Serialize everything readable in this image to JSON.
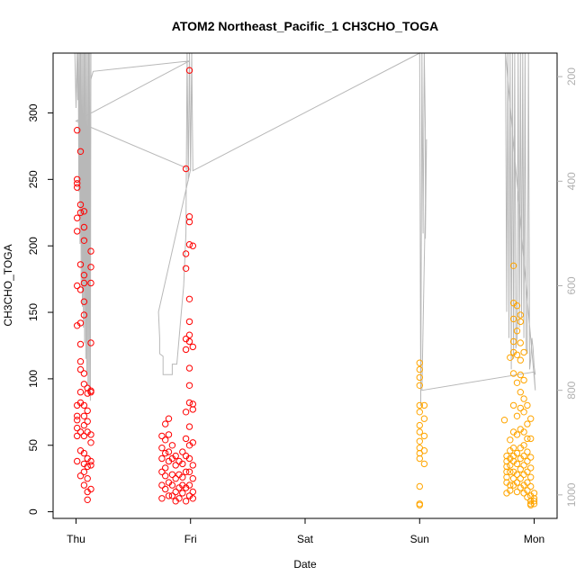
{
  "chart_data": {
    "type": "scatter",
    "title": "ATOM2 Northeast_Pacific_1 CH3CHO_TOGA",
    "xlabel": "Date",
    "ylabel": "CH3CHO_TOGA",
    "x_ticks": [
      "Thu",
      "Fri",
      "Sat",
      "Sun",
      "Mon"
    ],
    "x_range_days": [
      -0.2,
      4.2
    ],
    "ylim": [
      -5,
      345
    ],
    "y_ticks": [
      0,
      50,
      100,
      150,
      200,
      250,
      300
    ],
    "y2_ticks": [
      200,
      400,
      600,
      800,
      1000
    ],
    "y2_range": [
      1045,
      155
    ],
    "y2_reversed": true,
    "series": [
      {
        "color": "#ff0000",
        "points": [
          [
            0.01,
            287
          ],
          [
            0.01,
            250
          ],
          [
            0.01,
            247
          ],
          [
            0.01,
            244
          ],
          [
            0.01,
            221
          ],
          [
            0.01,
            211
          ],
          [
            0.01,
            170
          ],
          [
            0.01,
            140
          ],
          [
            0.01,
            80
          ],
          [
            0.01,
            72
          ],
          [
            0.01,
            69
          ],
          [
            0.01,
            63
          ],
          [
            0.01,
            57
          ],
          [
            0.01,
            38
          ],
          [
            0.04,
            271
          ],
          [
            0.04,
            231
          ],
          [
            0.04,
            225
          ],
          [
            0.04,
            186
          ],
          [
            0.04,
            167
          ],
          [
            0.04,
            142
          ],
          [
            0.04,
            126
          ],
          [
            0.04,
            113
          ],
          [
            0.04,
            107
          ],
          [
            0.04,
            90
          ],
          [
            0.04,
            82
          ],
          [
            0.04,
            60
          ],
          [
            0.04,
            46
          ],
          [
            0.04,
            27
          ],
          [
            0.07,
            226
          ],
          [
            0.07,
            214
          ],
          [
            0.07,
            204
          ],
          [
            0.07,
            178
          ],
          [
            0.07,
            172
          ],
          [
            0.07,
            158
          ],
          [
            0.07,
            148
          ],
          [
            0.07,
            104
          ],
          [
            0.07,
            96
          ],
          [
            0.07,
            80
          ],
          [
            0.07,
            72
          ],
          [
            0.07,
            65
          ],
          [
            0.07,
            57
          ],
          [
            0.07,
            44
          ],
          [
            0.07,
            36
          ],
          [
            0.07,
            30
          ],
          [
            0.07,
            20
          ],
          [
            0.1,
            93
          ],
          [
            0.1,
            89
          ],
          [
            0.1,
            76
          ],
          [
            0.1,
            68
          ],
          [
            0.1,
            60
          ],
          [
            0.1,
            40
          ],
          [
            0.1,
            34
          ],
          [
            0.1,
            25
          ],
          [
            0.1,
            15
          ],
          [
            0.1,
            9
          ],
          [
            0.13,
            196
          ],
          [
            0.13,
            184
          ],
          [
            0.13,
            172
          ],
          [
            0.13,
            127
          ],
          [
            0.13,
            91
          ],
          [
            0.13,
            90
          ],
          [
            0.13,
            58
          ],
          [
            0.13,
            52
          ],
          [
            0.13,
            38
          ],
          [
            0.13,
            35
          ],
          [
            0.13,
            17
          ],
          [
            0.75,
            57
          ],
          [
            0.75,
            48
          ],
          [
            0.75,
            40
          ],
          [
            0.75,
            30
          ],
          [
            0.75,
            20
          ],
          [
            0.75,
            10
          ],
          [
            0.78,
            66
          ],
          [
            0.78,
            54
          ],
          [
            0.78,
            44
          ],
          [
            0.78,
            33
          ],
          [
            0.78,
            27
          ],
          [
            0.78,
            17
          ],
          [
            0.81,
            70
          ],
          [
            0.81,
            58
          ],
          [
            0.81,
            45
          ],
          [
            0.81,
            38
          ],
          [
            0.81,
            22
          ],
          [
            0.81,
            12
          ],
          [
            0.84,
            50
          ],
          [
            0.84,
            40
          ],
          [
            0.84,
            28
          ],
          [
            0.84,
            20
          ],
          [
            0.84,
            12
          ],
          [
            0.87,
            42
          ],
          [
            0.87,
            35
          ],
          [
            0.87,
            25
          ],
          [
            0.87,
            15
          ],
          [
            0.87,
            8
          ],
          [
            0.9,
            38
          ],
          [
            0.9,
            28
          ],
          [
            0.9,
            18
          ],
          [
            0.9,
            10
          ],
          [
            0.93,
            45
          ],
          [
            0.93,
            36
          ],
          [
            0.93,
            26
          ],
          [
            0.93,
            20
          ],
          [
            0.93,
            14
          ],
          [
            0.96,
            258
          ],
          [
            0.96,
            194
          ],
          [
            0.96,
            183
          ],
          [
            0.96,
            130
          ],
          [
            0.96,
            122
          ],
          [
            0.96,
            75
          ],
          [
            0.96,
            55
          ],
          [
            0.96,
            42
          ],
          [
            0.96,
            30
          ],
          [
            0.96,
            18
          ],
          [
            0.96,
            8
          ],
          [
            0.99,
            332
          ],
          [
            0.99,
            222
          ],
          [
            0.99,
            218
          ],
          [
            0.99,
            201
          ],
          [
            0.99,
            160
          ],
          [
            0.99,
            143
          ],
          [
            0.99,
            133
          ],
          [
            0.99,
            128
          ],
          [
            0.99,
            108
          ],
          [
            0.99,
            95
          ],
          [
            0.99,
            82
          ],
          [
            0.99,
            64
          ],
          [
            0.99,
            50
          ],
          [
            0.99,
            40
          ],
          [
            0.99,
            30
          ],
          [
            0.99,
            20
          ],
          [
            0.99,
            12
          ],
          [
            1.02,
            200
          ],
          [
            1.02,
            124
          ],
          [
            1.02,
            81
          ],
          [
            1.02,
            77
          ],
          [
            1.02,
            52
          ],
          [
            1.02,
            35
          ],
          [
            1.02,
            25
          ],
          [
            1.02,
            15
          ],
          [
            1.02,
            10
          ]
        ]
      },
      {
        "color": "#ffa500",
        "points": [
          [
            3.0,
            112
          ],
          [
            3.0,
            107
          ],
          [
            3.0,
            101
          ],
          [
            3.0,
            95
          ],
          [
            3.0,
            80
          ],
          [
            3.0,
            75
          ],
          [
            3.0,
            65
          ],
          [
            3.0,
            60
          ],
          [
            3.0,
            53
          ],
          [
            3.0,
            48
          ],
          [
            3.0,
            44
          ],
          [
            3.0,
            40
          ],
          [
            3.0,
            19
          ],
          [
            3.0,
            6
          ],
          [
            3.0,
            5
          ],
          [
            3.04,
            80
          ],
          [
            3.04,
            70
          ],
          [
            3.04,
            57
          ],
          [
            3.04,
            46
          ],
          [
            3.04,
            36
          ],
          [
            3.74,
            69
          ],
          [
            3.76,
            42
          ],
          [
            3.76,
            38
          ],
          [
            3.76,
            34
          ],
          [
            3.76,
            30
          ],
          [
            3.76,
            26
          ],
          [
            3.76,
            22
          ],
          [
            3.76,
            14
          ],
          [
            3.79,
            116
          ],
          [
            3.79,
            54
          ],
          [
            3.79,
            46
          ],
          [
            3.79,
            40
          ],
          [
            3.79,
            35
          ],
          [
            3.79,
            30
          ],
          [
            3.79,
            20
          ],
          [
            3.79,
            16
          ],
          [
            3.82,
            185
          ],
          [
            3.82,
            157
          ],
          [
            3.82,
            145
          ],
          [
            3.82,
            128
          ],
          [
            3.82,
            120
          ],
          [
            3.82,
            104
          ],
          [
            3.82,
            80
          ],
          [
            3.82,
            60
          ],
          [
            3.82,
            48
          ],
          [
            3.82,
            42
          ],
          [
            3.82,
            38
          ],
          [
            3.82,
            30
          ],
          [
            3.82,
            25
          ],
          [
            3.82,
            20
          ],
          [
            3.85,
            155
          ],
          [
            3.85,
            136
          ],
          [
            3.85,
            118
          ],
          [
            3.85,
            97
          ],
          [
            3.85,
            72
          ],
          [
            3.85,
            58
          ],
          [
            3.85,
            44
          ],
          [
            3.85,
            36
          ],
          [
            3.85,
            28
          ],
          [
            3.85,
            22
          ],
          [
            3.85,
            15
          ],
          [
            3.88,
            148
          ],
          [
            3.88,
            143
          ],
          [
            3.88,
            127
          ],
          [
            3.88,
            114
          ],
          [
            3.88,
            103
          ],
          [
            3.88,
            90
          ],
          [
            3.88,
            78
          ],
          [
            3.88,
            62
          ],
          [
            3.88,
            48
          ],
          [
            3.88,
            40
          ],
          [
            3.88,
            32
          ],
          [
            3.88,
            25
          ],
          [
            3.88,
            18
          ],
          [
            3.91,
            120
          ],
          [
            3.91,
            99
          ],
          [
            3.91,
            85
          ],
          [
            3.91,
            75
          ],
          [
            3.91,
            60
          ],
          [
            3.91,
            50
          ],
          [
            3.91,
            42
          ],
          [
            3.91,
            35
          ],
          [
            3.91,
            28
          ],
          [
            3.91,
            20
          ],
          [
            3.91,
            14
          ],
          [
            3.94,
            80
          ],
          [
            3.94,
            66
          ],
          [
            3.94,
            55
          ],
          [
            3.94,
            45
          ],
          [
            3.94,
            38
          ],
          [
            3.94,
            30
          ],
          [
            3.94,
            22
          ],
          [
            3.94,
            16
          ],
          [
            3.94,
            11
          ],
          [
            3.97,
            70
          ],
          [
            3.97,
            55
          ],
          [
            3.97,
            41
          ],
          [
            3.97,
            33
          ],
          [
            3.97,
            26
          ],
          [
            3.97,
            19
          ],
          [
            3.97,
            12
          ],
          [
            3.97,
            8
          ],
          [
            3.97,
            6
          ],
          [
            3.97,
            5
          ],
          [
            4.0,
            14
          ],
          [
            4.0,
            10
          ],
          [
            4.0,
            8
          ],
          [
            4.0,
            6
          ]
        ]
      }
    ],
    "altitude_line": {
      "color": "#b8b8b8",
      "points": [
        [
          -0.01,
          155
        ],
        [
          0.0,
          260
        ],
        [
          0.01,
          155
        ],
        [
          0.015,
          245
        ],
        [
          0.02,
          155
        ],
        [
          0.025,
          420
        ],
        [
          0.03,
          155
        ],
        [
          0.035,
          520
        ],
        [
          0.04,
          155
        ],
        [
          0.045,
          600
        ],
        [
          0.05,
          155
        ],
        [
          0.055,
          640
        ],
        [
          0.06,
          155
        ],
        [
          0.065,
          680
        ],
        [
          0.07,
          155
        ],
        [
          0.075,
          710
        ],
        [
          0.08,
          155
        ],
        [
          0.085,
          740
        ],
        [
          0.09,
          155
        ],
        [
          0.095,
          770
        ],
        [
          0.1,
          155
        ],
        [
          0.105,
          790
        ],
        [
          0.11,
          155
        ],
        [
          0.115,
          805
        ],
        [
          0.12,
          155
        ],
        [
          0.125,
          820
        ],
        [
          0.13,
          155
        ],
        [
          0.13,
          205
        ],
        [
          0.15,
          190
        ],
        [
          0.99,
          170
        ],
        [
          0.0,
          285
        ],
        [
          1.0,
          378
        ],
        [
          0.72,
          650
        ],
        [
          0.73,
          700
        ],
        [
          0.73,
          730
        ],
        [
          0.76,
          735
        ],
        [
          0.76,
          770
        ],
        [
          0.84,
          770
        ],
        [
          0.84,
          750
        ],
        [
          0.88,
          750
        ],
        [
          0.9,
          700
        ],
        [
          0.92,
          650
        ],
        [
          0.94,
          600
        ],
        [
          0.96,
          500
        ],
        [
          0.97,
          155
        ],
        [
          0.98,
          400
        ],
        [
          0.99,
          155
        ],
        [
          1.0,
          380
        ],
        [
          1.01,
          155
        ],
        [
          1.02,
          380
        ],
        [
          3.0,
          155
        ],
        [
          3.01,
          830
        ],
        [
          3.02,
          155
        ],
        [
          3.03,
          500
        ],
        [
          3.04,
          155
        ],
        [
          3.05,
          300
        ],
        [
          3.05,
          510
        ],
        [
          3.06,
          320
        ],
        [
          3.02,
          800
        ],
        [
          4.0,
          765
        ],
        [
          4.01,
          800
        ],
        [
          3.75,
          155
        ],
        [
          3.76,
          650
        ],
        [
          3.77,
          155
        ],
        [
          3.78,
          700
        ],
        [
          3.79,
          155
        ],
        [
          3.8,
          760
        ],
        [
          3.81,
          155
        ],
        [
          3.82,
          740
        ],
        [
          3.83,
          155
        ],
        [
          3.84,
          720
        ],
        [
          3.85,
          700
        ],
        [
          3.86,
          155
        ],
        [
          3.87,
          680
        ],
        [
          3.88,
          155
        ],
        [
          3.89,
          660
        ],
        [
          3.9,
          155
        ],
        [
          3.91,
          700
        ],
        [
          3.92,
          155
        ],
        [
          3.93,
          720
        ],
        [
          3.94,
          730
        ],
        [
          3.95,
          155
        ],
        [
          3.96,
          760
        ],
        [
          3.97,
          740
        ],
        [
          3.98,
          700
        ],
        [
          3.99,
          720
        ],
        [
          4.0,
          755
        ],
        [
          4.01,
          770
        ]
      ]
    }
  }
}
